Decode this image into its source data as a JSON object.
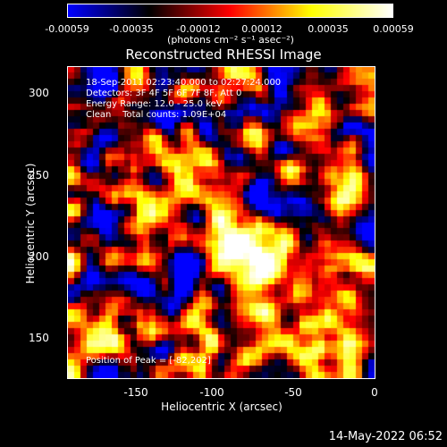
{
  "colorbar": {
    "ticks": [
      "-0.00059",
      "-0.00035",
      "-0.00012",
      "0.00012",
      "0.00035",
      "0.00059"
    ],
    "units": "(photons cm⁻² s⁻¹ asec⁻²)",
    "colors": [
      "#0000ff",
      "#000000",
      "#ff0000",
      "#ffff00",
      "#ffffff"
    ]
  },
  "title": "Reconstructed RHESSI Image",
  "info": {
    "time": "18-Sep-2011 02:23:40.000 to 02:27:24.000",
    "detectors": "Detectors: 3F 4F 5F 6F 7F 8F, Att 0",
    "energy": "Energy Range: 12.0 - 25.0 keV",
    "clean": "Clean    Total counts: 1.09E+04",
    "peak": "Position of Peak = [-82,202]"
  },
  "axes": {
    "xlabel": "Heliocentric X (arcsec)",
    "ylabel": "Heliocentric Y (arcsec)",
    "xticks": [
      "-150",
      "-100",
      "-50",
      "0"
    ],
    "yticks": [
      "300",
      "250",
      "200",
      "150"
    ]
  },
  "footer": "14-May-2022 06:52"
}
